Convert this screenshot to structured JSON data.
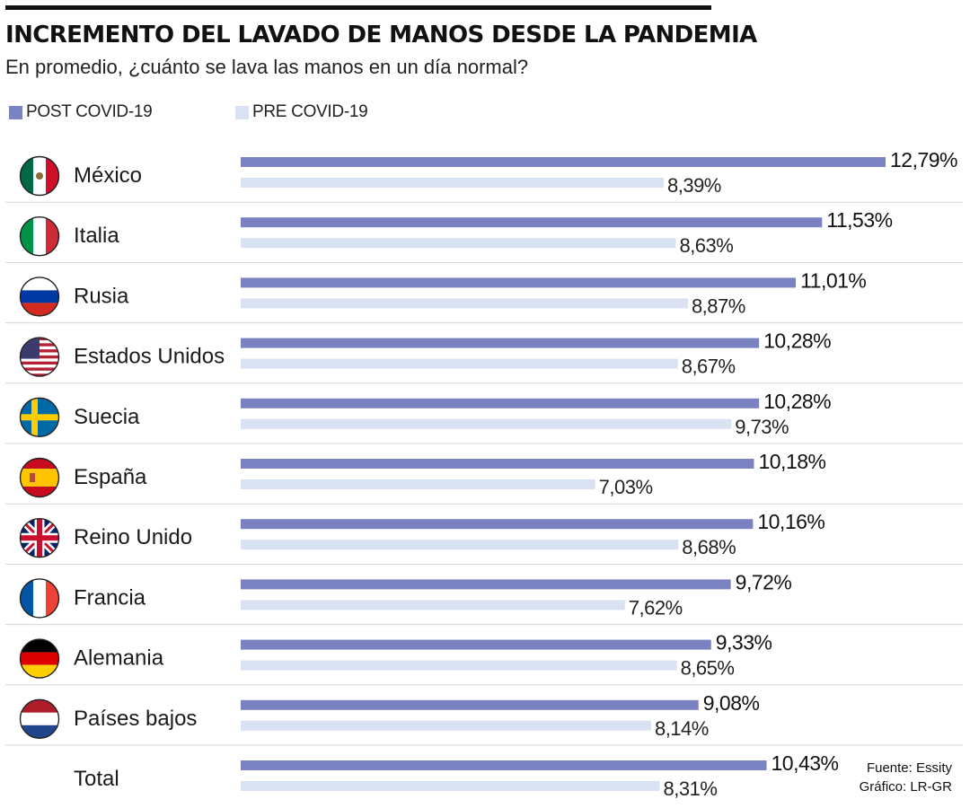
{
  "header": {
    "title": "INCREMENTO DEL LAVADO DE MANOS DESDE LA PANDEMIA",
    "subtitle": "En promedio, ¿cuánto se lava las manos en un día normal?"
  },
  "colors": {
    "post": "#7b82c2",
    "pre": "#d9e2f3",
    "rule": "#111111",
    "separator": "#d4d4d4"
  },
  "source": {
    "line1": "Fuente: Essity",
    "line2": "Gráfico: LR-GR"
  },
  "chart_data": {
    "type": "bar",
    "orientation": "horizontal",
    "grid": false,
    "legend_position": "top-left",
    "xlim": [
      0,
      12.79
    ],
    "categories": [
      "México",
      "Italia",
      "Rusia",
      "Estados Unidos",
      "Suecia",
      "España",
      "Reino Unido",
      "Francia",
      "Alemania",
      "Países bajos",
      "Total"
    ],
    "flags": [
      "mexico-flag-icon",
      "italy-flag-icon",
      "russia-flag-icon",
      "usa-flag-icon",
      "sweden-flag-icon",
      "spain-flag-icon",
      "uk-flag-icon",
      "france-flag-icon",
      "germany-flag-icon",
      "netherlands-flag-icon",
      ""
    ],
    "series": [
      {
        "name": "POST COVID-19",
        "values": [
          12.79,
          11.53,
          11.01,
          10.28,
          10.28,
          10.18,
          10.16,
          9.72,
          9.33,
          9.08,
          10.43
        ],
        "labels": [
          "12,79%",
          "11,53%",
          "11,01%",
          "10,28%",
          "10,28%",
          "10,18%",
          "10,16%",
          "9,72%",
          "9,33%",
          "9,08%",
          "10,43%"
        ]
      },
      {
        "name": "PRE COVID-19",
        "values": [
          8.39,
          8.63,
          8.87,
          8.67,
          9.73,
          7.03,
          8.68,
          7.62,
          8.65,
          8.14,
          8.31
        ],
        "labels": [
          "8,39%",
          "8,63%",
          "8,87%",
          "8,67%",
          "9,73%",
          "7,03%",
          "8,68%",
          "7,62%",
          "8,65%",
          "8,14%",
          "8,31%"
        ]
      }
    ]
  }
}
